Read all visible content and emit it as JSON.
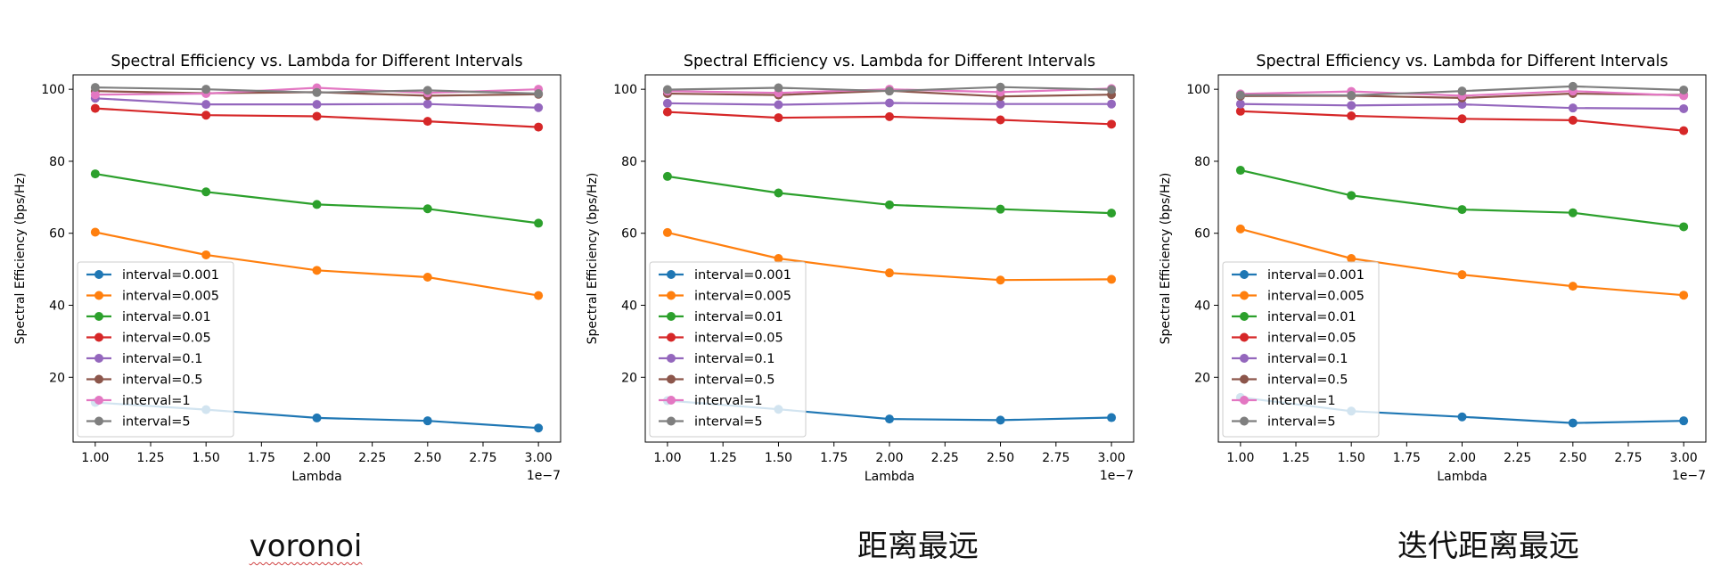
{
  "colors": {
    "interval=0.001": "#1f77b4",
    "interval=0.005": "#ff7f0e",
    "interval=0.01": "#2ca02c",
    "interval=0.05": "#d62728",
    "interval=0.1": "#9467bd",
    "interval=0.5": "#8c564b",
    "interval=1": "#e377c2",
    "interval=5": "#7f7f7f"
  },
  "captions": [
    "voronoi",
    "距离最远",
    "迭代距离最远"
  ],
  "chart_data": [
    {
      "type": "line",
      "title": "Spectral Efficiency vs. Lambda for Different Intervals",
      "xlabel": "Lambda",
      "ylabel": "Spectral Efficiency (bps/Hz)",
      "x_offset_text": "1e−7",
      "x": [
        1.0,
        1.5,
        2.0,
        2.5,
        3.0
      ],
      "xlim": [
        0.9,
        3.1
      ],
      "ylim": [
        2,
        104
      ],
      "xticks": [
        1.0,
        1.25,
        1.5,
        1.75,
        2.0,
        2.25,
        2.5,
        2.75,
        3.0
      ],
      "xtick_labels": [
        "1.00",
        "1.25",
        "1.50",
        "1.75",
        "2.00",
        "2.25",
        "2.50",
        "2.75",
        "3.00"
      ],
      "yticks": [
        20,
        40,
        60,
        80,
        100
      ],
      "ytick_labels": [
        "20",
        "40",
        "60",
        "80",
        "100"
      ],
      "legend": "lower-left",
      "grid": false,
      "series": [
        {
          "name": "interval=0.001",
          "values": [
            13.0,
            11.0,
            8.7,
            7.9,
            5.9
          ]
        },
        {
          "name": "interval=0.005",
          "values": [
            60.3,
            54.0,
            49.7,
            47.8,
            42.7
          ]
        },
        {
          "name": "interval=0.01",
          "values": [
            76.5,
            71.5,
            68.0,
            66.8,
            62.8
          ]
        },
        {
          "name": "interval=0.05",
          "values": [
            94.7,
            92.8,
            92.5,
            91.1,
            89.5
          ]
        },
        {
          "name": "interval=0.1",
          "values": [
            97.5,
            95.8,
            95.8,
            95.9,
            94.9
          ]
        },
        {
          "name": "interval=0.5",
          "values": [
            99.5,
            98.9,
            99.2,
            98.2,
            98.6
          ]
        },
        {
          "name": "interval=1",
          "values": [
            98.5,
            98.8,
            100.4,
            99.0,
            100.0
          ]
        },
        {
          "name": "interval=5",
          "values": [
            100.5,
            100.0,
            99.1,
            99.7,
            98.8
          ]
        }
      ]
    },
    {
      "type": "line",
      "title": "Spectral Efficiency vs. Lambda for Different Intervals",
      "xlabel": "Lambda",
      "ylabel": "Spectral Efficiency (bps/Hz)",
      "x_offset_text": "1e−7",
      "x": [
        1.0,
        1.5,
        2.0,
        2.5,
        3.0
      ],
      "xlim": [
        0.9,
        3.1
      ],
      "ylim": [
        2,
        104
      ],
      "xticks": [
        1.0,
        1.25,
        1.5,
        1.75,
        2.0,
        2.25,
        2.5,
        2.75,
        3.0
      ],
      "xtick_labels": [
        "1.00",
        "1.25",
        "1.50",
        "1.75",
        "2.00",
        "2.25",
        "2.50",
        "2.75",
        "3.00"
      ],
      "yticks": [
        20,
        40,
        60,
        80,
        100
      ],
      "ytick_labels": [
        "20",
        "40",
        "60",
        "80",
        "100"
      ],
      "legend": "lower-left",
      "grid": false,
      "series": [
        {
          "name": "interval=0.001",
          "values": [
            13.5,
            11.1,
            8.4,
            8.1,
            8.8
          ]
        },
        {
          "name": "interval=0.005",
          "values": [
            60.2,
            53.0,
            49.0,
            47.0,
            47.2
          ]
        },
        {
          "name": "interval=0.01",
          "values": [
            75.8,
            71.2,
            67.9,
            66.7,
            65.6
          ]
        },
        {
          "name": "interval=0.05",
          "values": [
            93.7,
            92.1,
            92.4,
            91.5,
            90.3
          ]
        },
        {
          "name": "interval=0.1",
          "values": [
            96.1,
            95.7,
            96.2,
            95.9,
            95.9
          ]
        },
        {
          "name": "interval=0.5",
          "values": [
            98.8,
            98.4,
            99.6,
            98.0,
            98.5
          ]
        },
        {
          "name": "interval=1",
          "values": [
            99.5,
            99.0,
            100.0,
            99.2,
            100.2
          ]
        },
        {
          "name": "interval=5",
          "values": [
            99.9,
            100.4,
            99.5,
            100.6,
            99.9
          ]
        }
      ]
    },
    {
      "type": "line",
      "title": "Spectral Efficiency vs. Lambda for Different Intervals",
      "xlabel": "Lambda",
      "ylabel": "Spectral Efficiency (bps/Hz)",
      "x_offset_text": "1e−7",
      "x": [
        1.0,
        1.5,
        2.0,
        2.5,
        3.0
      ],
      "xlim": [
        0.9,
        3.1
      ],
      "ylim": [
        2,
        104
      ],
      "xticks": [
        1.0,
        1.25,
        1.5,
        1.75,
        2.0,
        2.25,
        2.5,
        2.75,
        3.0
      ],
      "xtick_labels": [
        "1.00",
        "1.25",
        "1.50",
        "1.75",
        "2.00",
        "2.25",
        "2.50",
        "2.75",
        "3.00"
      ],
      "yticks": [
        20,
        40,
        60,
        80,
        100
      ],
      "ytick_labels": [
        "20",
        "40",
        "60",
        "80",
        "100"
      ],
      "legend": "lower-left",
      "grid": false,
      "series": [
        {
          "name": "interval=0.001",
          "values": [
            14.4,
            10.6,
            9.0,
            7.3,
            7.9
          ]
        },
        {
          "name": "interval=0.005",
          "values": [
            61.2,
            53.0,
            48.5,
            45.3,
            42.8
          ]
        },
        {
          "name": "interval=0.01",
          "values": [
            77.5,
            70.5,
            66.6,
            65.7,
            61.8
          ]
        },
        {
          "name": "interval=0.05",
          "values": [
            93.9,
            92.6,
            91.8,
            91.4,
            88.5
          ]
        },
        {
          "name": "interval=0.1",
          "values": [
            95.9,
            95.5,
            95.8,
            94.8,
            94.6
          ]
        },
        {
          "name": "interval=0.5",
          "values": [
            98.1,
            98.2,
            97.6,
            98.8,
            98.4
          ]
        },
        {
          "name": "interval=1",
          "values": [
            98.7,
            99.4,
            98.2,
            99.5,
            98.2
          ]
        },
        {
          "name": "interval=5",
          "values": [
            98.4,
            98.3,
            99.5,
            100.8,
            99.8
          ]
        }
      ]
    }
  ]
}
